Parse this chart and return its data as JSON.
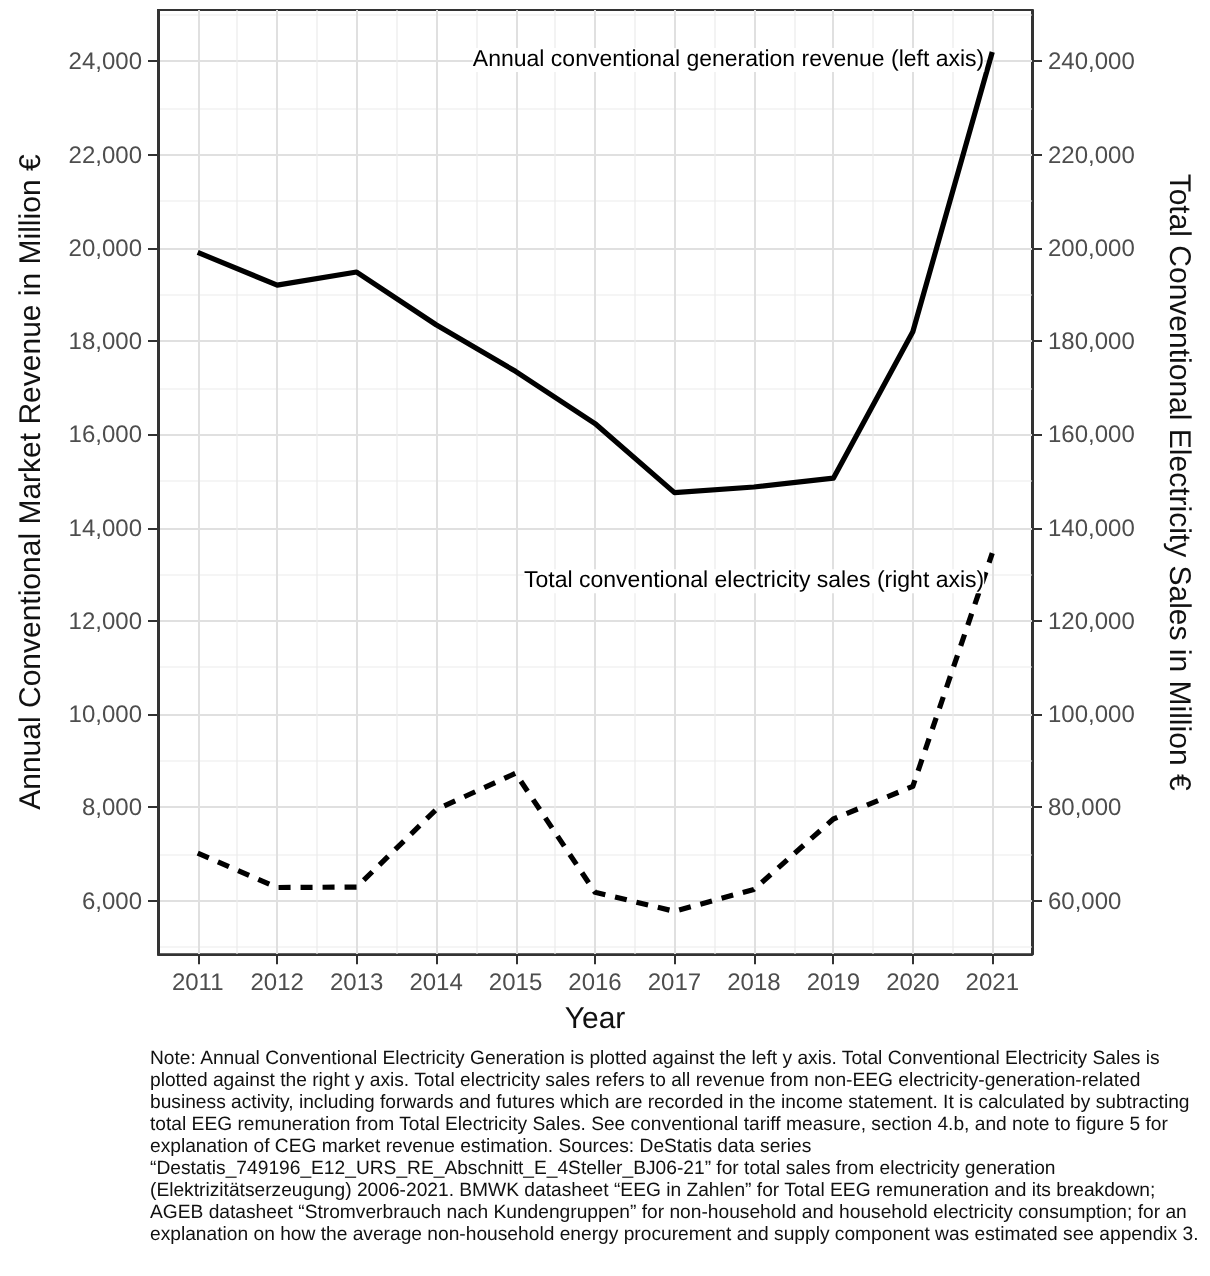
{
  "chart_data": {
    "type": "line",
    "xlabel": "Year",
    "ylabel": "Annual Conventional Market Revenue in Million €",
    "y2label": "Total Conventional Electricity Sales in Million €",
    "x": [
      2011,
      2012,
      2013,
      2014,
      2015,
      2016,
      2017,
      2018,
      2019,
      2020,
      2021
    ],
    "xlim": [
      2010.5,
      2021.5
    ],
    "xticks": [
      2011,
      2012,
      2013,
      2014,
      2015,
      2016,
      2017,
      2018,
      2019,
      2020,
      2021
    ],
    "ylim": [
      4850,
      25100
    ],
    "yticks": [
      {
        "value": 6000,
        "label": "6,000"
      },
      {
        "value": 8000,
        "label": "8,000"
      },
      {
        "value": 10000,
        "label": "10,000"
      },
      {
        "value": 12000,
        "label": "12,000"
      },
      {
        "value": 14000,
        "label": "14,000"
      },
      {
        "value": 16000,
        "label": "16,000"
      },
      {
        "value": 18000,
        "label": "18,000"
      },
      {
        "value": 20000,
        "label": "20,000"
      },
      {
        "value": 22000,
        "label": "22,000"
      },
      {
        "value": 24000,
        "label": "24,000"
      }
    ],
    "y2lim": [
      48500,
      251000
    ],
    "y2ticks": [
      {
        "value": 60000,
        "label": "60,000"
      },
      {
        "value": 80000,
        "label": "80,000"
      },
      {
        "value": 100000,
        "label": "100,000"
      },
      {
        "value": 120000,
        "label": "120,000"
      },
      {
        "value": 140000,
        "label": "140,000"
      },
      {
        "value": 160000,
        "label": "160,000"
      },
      {
        "value": 180000,
        "label": "180,000"
      },
      {
        "value": 200000,
        "label": "200,000"
      },
      {
        "value": 220000,
        "label": "220,000"
      },
      {
        "value": 240000,
        "label": "240,000"
      }
    ],
    "series": [
      {
        "name": "Annual conventional generation revenue (left axis)",
        "color": "#000000",
        "line_style": "solid",
        "values": [
          19900,
          19200,
          19480,
          18350,
          17350,
          16230,
          14750,
          14870,
          15060,
          18200,
          24200
        ]
      },
      {
        "name": "Total conventional electricity sales (right axis)",
        "color": "#000000",
        "line_style": "dashed",
        "axis": "y2",
        "values": [
          70200,
          62800,
          62900,
          79500,
          87300,
          61800,
          57700,
          62400,
          77500,
          84500,
          134500
        ]
      }
    ],
    "grid": true,
    "legend": false,
    "marker": "none",
    "annotations": [
      "Note: Annual Conventional Electricity Generation is plotted against the left y axis. Total Conventional Electricity Sales is plotted against the right y axis. Total electricity sales refers to all revenue from non-EEG electricity-generation-related business activity, including forwards and futures which are recorded in the income statement. It is calculated by subtracting total EEG remuneration from Total Electricity Sales. See conventional tariff measure, section 4.b, and note to figure 5 for explanation of CEG market revenue estimation. Sources: DeStatis data series “Destatis_749196_E12_URS_RE_Abschnitt_E_4Steller_BJ06-21” for total sales from electricity generation (Elektrizitätserzeugung) 2006-2021. BMWK datasheet “EEG in Zahlen” for Total EEG remuneration and its breakdown; AGEB datasheet “Stromverbrauch nach Kundengruppen” for non-household and household electricity consumption; for an explanation on how the average non-household energy procurement and supply component was estimated see appendix 3."
    ]
  }
}
